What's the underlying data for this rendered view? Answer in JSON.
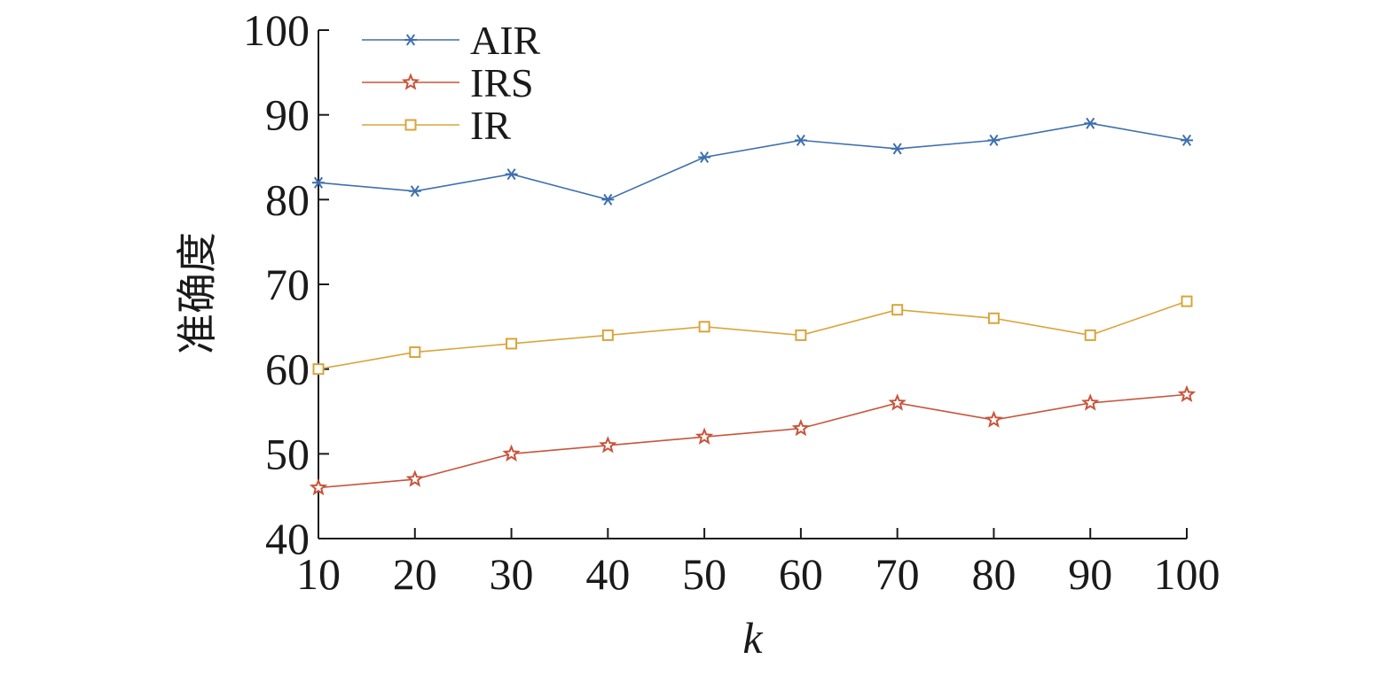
{
  "chart_data": {
    "type": "line",
    "title": "",
    "xlabel": "k",
    "ylabel": "准确度",
    "x": [
      10,
      20,
      30,
      40,
      50,
      60,
      70,
      80,
      90,
      100
    ],
    "xlim": [
      10,
      100
    ],
    "ylim": [
      40,
      100
    ],
    "x_ticks": [
      "10",
      "20",
      "30",
      "40",
      "50",
      "60",
      "70",
      "80",
      "90",
      "100"
    ],
    "y_ticks": [
      "40",
      "50",
      "60",
      "70",
      "80",
      "90",
      "100"
    ],
    "grid": false,
    "legend_position": "top-left",
    "series": [
      {
        "name": "AIR",
        "color": "#3d6fae",
        "marker": "asterisk",
        "values": [
          82,
          81,
          83,
          80,
          85,
          87,
          86,
          87,
          89,
          87
        ]
      },
      {
        "name": "IRS",
        "color": "#c8543a",
        "marker": "star",
        "values": [
          46,
          47,
          50,
          51,
          52,
          53,
          56,
          54,
          56,
          57
        ]
      },
      {
        "name": "IR",
        "color": "#d9a53a",
        "marker": "square",
        "values": [
          60,
          62,
          63,
          64,
          65,
          64,
          67,
          66,
          64,
          68
        ]
      }
    ]
  }
}
